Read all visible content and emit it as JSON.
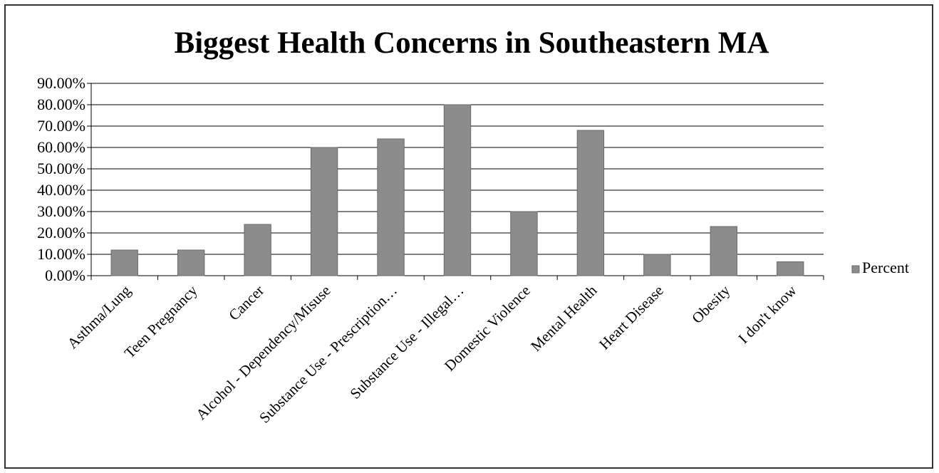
{
  "chart_data": {
    "type": "bar",
    "title": "Biggest Health Concerns in Southeastern MA",
    "categories": [
      "Asthma/Lung",
      "Teen Pregnancy",
      "Cancer",
      "Alcohol - Dependency/Misuse",
      "Substance Use - Prescription…",
      "Substance Use - Illegal…",
      "Domestic Violence",
      "Mental Health",
      "Heart Disease",
      "Obesity",
      "I don't know"
    ],
    "series": [
      {
        "name": "Percent",
        "values": [
          0.12,
          0.12,
          0.24,
          0.6,
          0.64,
          0.8,
          0.3,
          0.68,
          0.1,
          0.23,
          0.065
        ]
      }
    ],
    "ylim": [
      0,
      0.9
    ],
    "yticks": [
      0,
      0.1,
      0.2,
      0.3,
      0.4,
      0.5,
      0.6,
      0.7,
      0.8,
      0.9
    ],
    "ytick_labels": [
      "0.00%",
      "10.00%",
      "20.00%",
      "30.00%",
      "40.00%",
      "50.00%",
      "60.00%",
      "70.00%",
      "80.00%",
      "90.00%"
    ],
    "xlabel": "",
    "ylabel": "",
    "grid": true,
    "legend_position": "right",
    "colors": {
      "bar": "#8c8c8c",
      "bar_edge": "#6a6a6a",
      "grid": "#000000",
      "axis": "#000000"
    }
  }
}
